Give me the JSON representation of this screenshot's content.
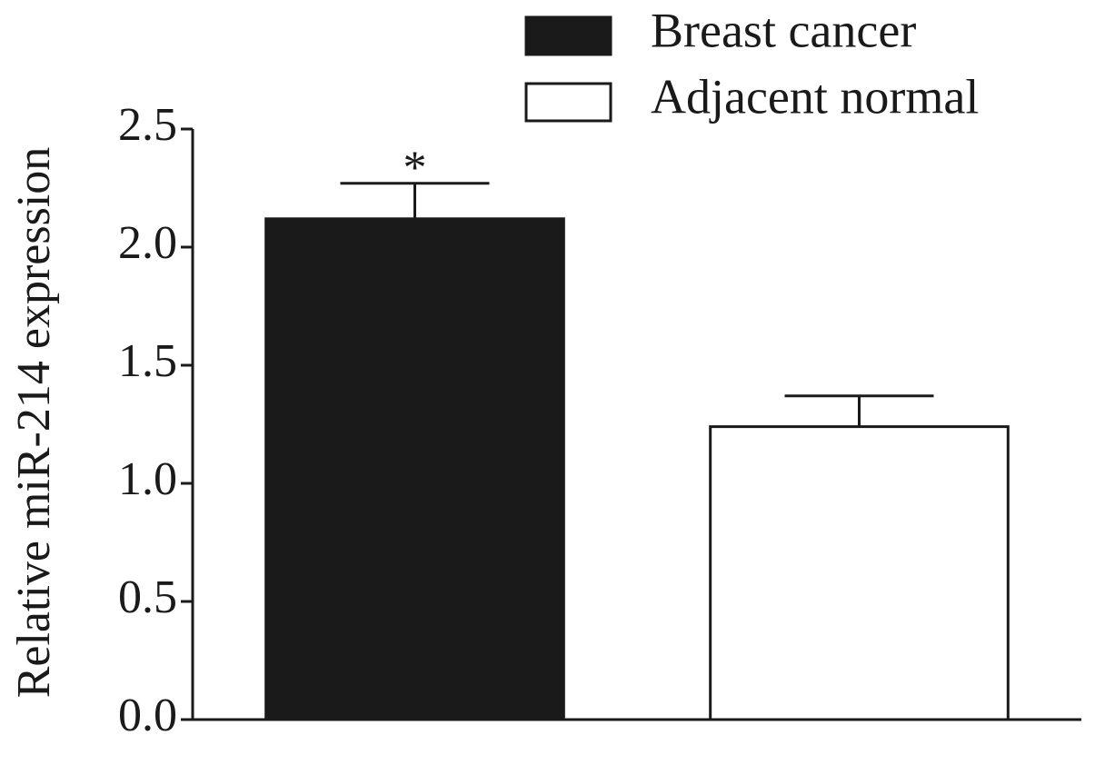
{
  "chart_data": {
    "type": "bar",
    "y_label": "Relative miR-214 expression",
    "categories": [
      null
    ],
    "series": [
      {
        "name": "Breast cancer",
        "color": "#1a1a1a",
        "values": [
          2.12
        ],
        "errors": [
          0.15
        ],
        "annotations": [
          "*"
        ]
      },
      {
        "name": "Adjacent normal",
        "color": "#ffffff",
        "values": [
          1.24
        ],
        "errors": [
          0.13
        ]
      }
    ],
    "ylim": [
      0,
      2.5
    ],
    "yticks": [
      {
        "value": 0,
        "label": "0.0"
      },
      0.5,
      {
        "value": 1,
        "label": "1.0"
      },
      1.5,
      {
        "value": 2,
        "label": "2.0"
      },
      2.5
    ],
    "legend": "top-right"
  }
}
